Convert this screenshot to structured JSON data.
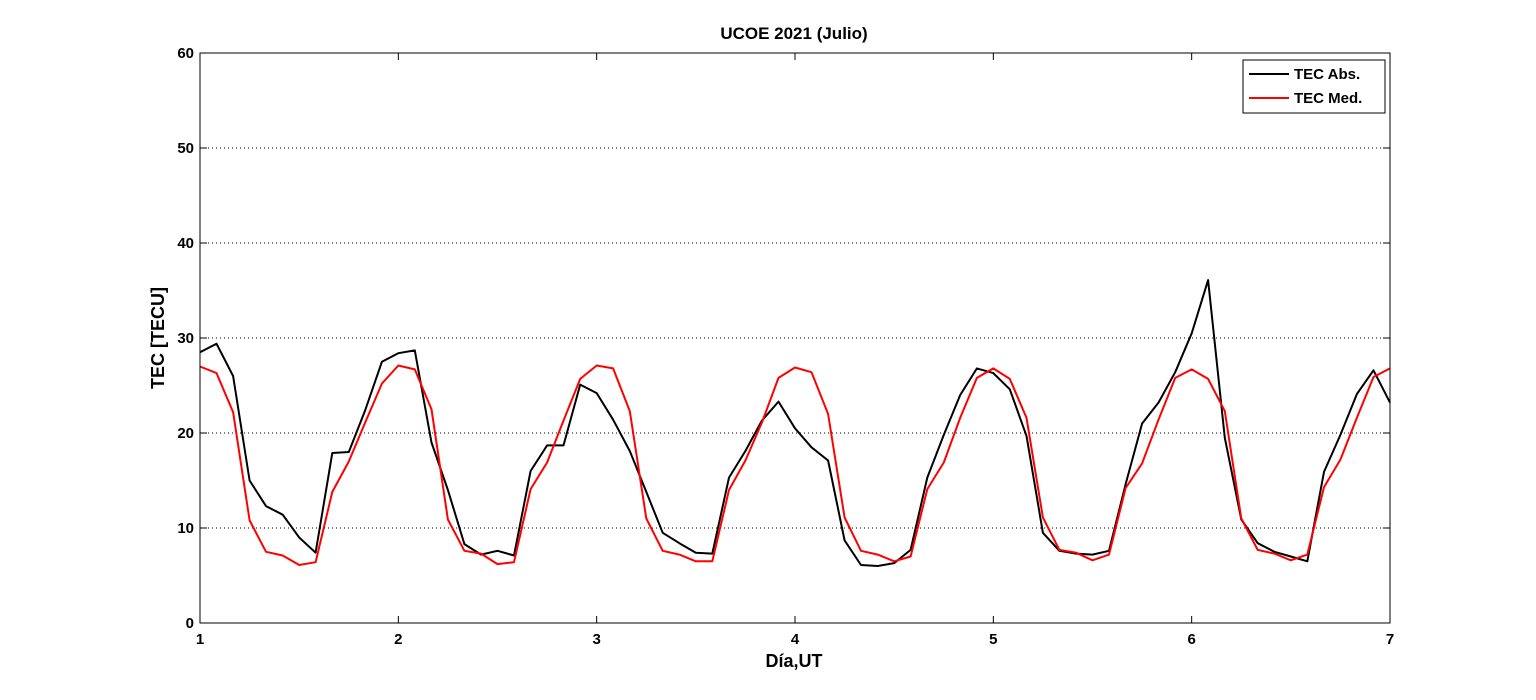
{
  "chart_data": {
    "type": "line",
    "title": "UCOE 2021 (Julio)",
    "xlabel": "Día,UT",
    "ylabel": "TEC [TECU]",
    "xlim": [
      1,
      7
    ],
    "ylim": [
      0,
      60
    ],
    "xticks": [
      1,
      2,
      3,
      4,
      5,
      6,
      7
    ],
    "xtick_labels": [
      "1",
      "2",
      "3",
      "4",
      "5",
      "6",
      "7"
    ],
    "yticks": [
      0,
      10,
      20,
      30,
      40,
      50,
      60
    ],
    "ytick_labels": [
      "0",
      "10",
      "20",
      "30",
      "40",
      "50",
      "60"
    ],
    "grid": "dotted horizontal",
    "legend": "top-right",
    "series": [
      {
        "name": "TEC Abs.",
        "color": "#000000",
        "x": [
          1.0,
          1.083,
          1.167,
          1.25,
          1.333,
          1.417,
          1.5,
          1.583,
          1.667,
          1.75,
          1.833,
          1.917,
          2.0,
          2.083,
          2.167,
          2.25,
          2.333,
          2.417,
          2.5,
          2.583,
          2.667,
          2.75,
          2.833,
          2.917,
          3.0,
          3.083,
          3.167,
          3.25,
          3.333,
          3.417,
          3.5,
          3.583,
          3.667,
          3.75,
          3.833,
          3.917,
          4.0,
          4.083,
          4.167,
          4.25,
          4.333,
          4.417,
          4.5,
          4.583,
          4.667,
          4.75,
          4.833,
          4.917,
          5.0,
          5.083,
          5.167,
          5.25,
          5.333,
          5.417,
          5.5,
          5.583,
          5.667,
          5.75,
          5.833,
          5.917,
          6.0,
          6.083,
          6.167,
          6.25,
          6.333,
          6.417,
          6.5,
          6.583,
          6.667,
          6.75,
          6.833,
          6.917,
          7.0
        ],
        "y": [
          28.5,
          29.4,
          26.0,
          15.0,
          12.3,
          11.4,
          9.0,
          7.4,
          17.9,
          18.0,
          22.4,
          27.5,
          28.4,
          28.7,
          19.0,
          14.0,
          8.3,
          7.2,
          7.6,
          7.1,
          16.0,
          18.7,
          18.7,
          25.1,
          24.2,
          21.4,
          18.1,
          13.8,
          9.5,
          8.4,
          7.4,
          7.3,
          15.3,
          18.1,
          21.3,
          23.3,
          20.5,
          18.5,
          17.1,
          8.7,
          6.1,
          6.0,
          6.3,
          7.7,
          15.3,
          19.8,
          24.0,
          26.8,
          26.3,
          24.6,
          19.7,
          9.5,
          7.6,
          7.3,
          7.2,
          7.6,
          14.6,
          21.0,
          23.2,
          26.4,
          30.5,
          36.1,
          19.5,
          10.9,
          8.4,
          7.5,
          7.0,
          6.5,
          15.9,
          19.8,
          24.1,
          26.6,
          23.2
        ]
      },
      {
        "name": "TEC Med.",
        "color": "#ff0000",
        "x": [
          1.0,
          1.083,
          1.167,
          1.25,
          1.333,
          1.417,
          1.5,
          1.583,
          1.667,
          1.75,
          1.833,
          1.917,
          2.0,
          2.083,
          2.167,
          2.25,
          2.333,
          2.417,
          2.5,
          2.583,
          2.667,
          2.75,
          2.833,
          2.917,
          3.0,
          3.083,
          3.167,
          3.25,
          3.333,
          3.417,
          3.5,
          3.583,
          3.667,
          3.75,
          3.833,
          3.917,
          4.0,
          4.083,
          4.167,
          4.25,
          4.333,
          4.417,
          4.5,
          4.583,
          4.667,
          4.75,
          4.833,
          4.917,
          5.0,
          5.083,
          5.167,
          5.25,
          5.333,
          5.417,
          5.5,
          5.583,
          5.667,
          5.75,
          5.833,
          5.917,
          6.0,
          6.083,
          6.167,
          6.25,
          6.333,
          6.417,
          6.5,
          6.583,
          6.667,
          6.75,
          6.833,
          6.917,
          7.0
        ],
        "y": [
          27.0,
          26.3,
          22.2,
          10.8,
          7.5,
          7.1,
          6.1,
          6.4,
          13.8,
          17.0,
          21.1,
          25.2,
          27.1,
          26.7,
          22.5,
          10.9,
          7.6,
          7.3,
          6.2,
          6.4,
          14.1,
          16.9,
          21.3,
          25.7,
          27.1,
          26.8,
          22.3,
          11.0,
          7.6,
          7.2,
          6.5,
          6.5,
          14.0,
          17.1,
          21.1,
          25.8,
          26.9,
          26.4,
          22.0,
          11.1,
          7.6,
          7.2,
          6.5,
          7.0,
          14.1,
          16.9,
          21.6,
          25.8,
          26.8,
          25.7,
          21.6,
          11.1,
          7.7,
          7.4,
          6.6,
          7.2,
          14.2,
          16.8,
          21.4,
          25.8,
          26.7,
          25.7,
          22.3,
          11.0,
          7.7,
          7.3,
          6.6,
          7.2,
          14.3,
          17.2,
          21.6,
          25.9,
          26.8
        ]
      }
    ]
  }
}
